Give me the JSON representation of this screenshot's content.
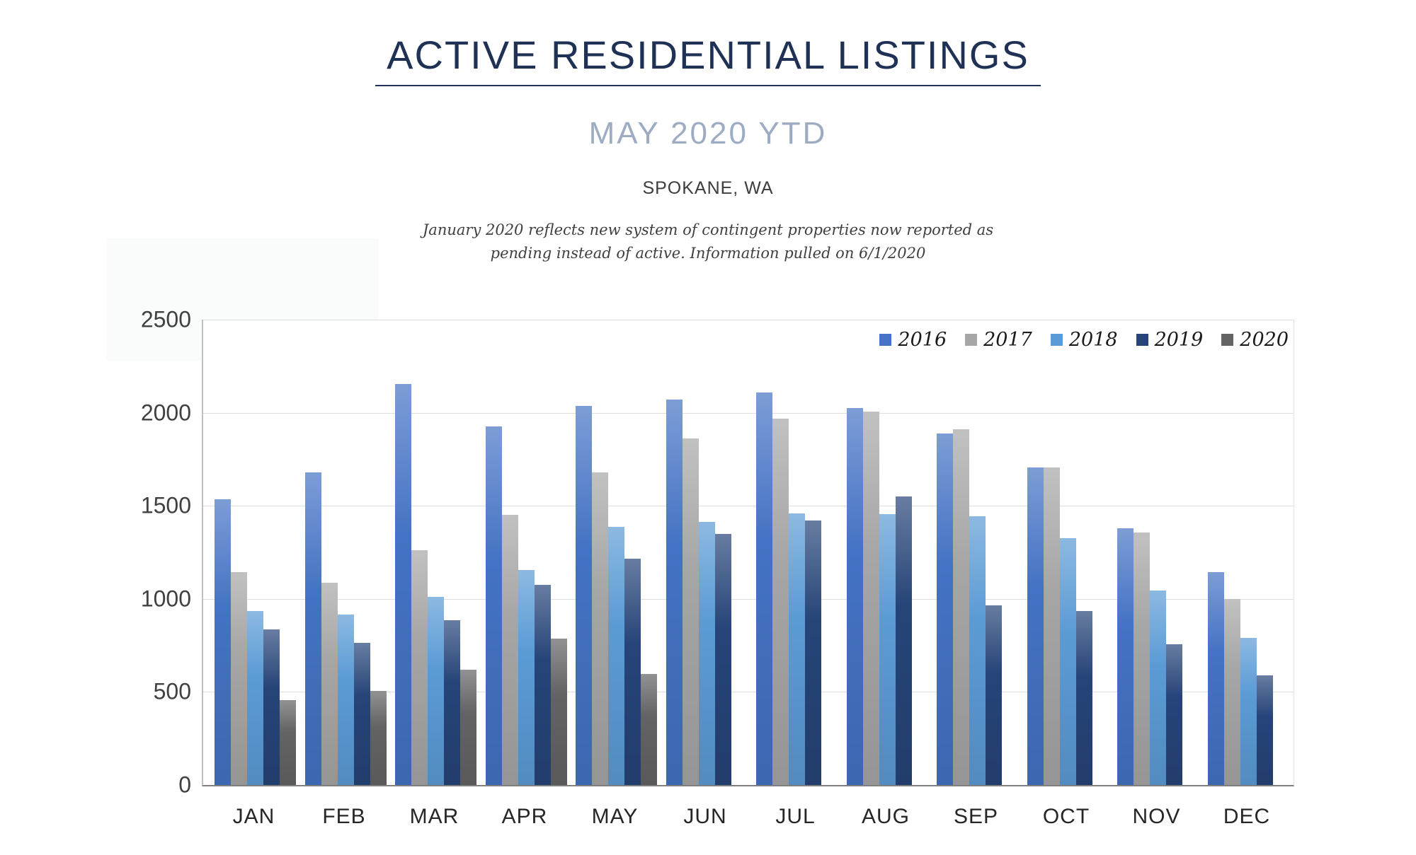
{
  "header": {
    "title": "ACTIVE RESIDENTIAL LISTINGS",
    "subtitle": "MAY 2020 YTD",
    "location": "SPOKANE, WA",
    "note_line1": "January 2020 reflects new system of contingent properties now reported as",
    "note_line2": "pending instead of active.  Information pulled on 6/1/2020"
  },
  "chart_data": {
    "type": "bar",
    "title": "Active Residential Listings, May 2020 YTD, Spokane WA",
    "categories": [
      "JAN",
      "FEB",
      "MAR",
      "APR",
      "MAY",
      "JUN",
      "JUL",
      "AUG",
      "SEP",
      "OCT",
      "NOV",
      "DEC"
    ],
    "series": [
      {
        "name": "2016",
        "color": "#4472C4",
        "values": [
          1535,
          1680,
          2155,
          1925,
          2035,
          2070,
          2110,
          2025,
          1890,
          1705,
          1380,
          1145
        ]
      },
      {
        "name": "2017",
        "color": "#A6A6A6",
        "values": [
          1145,
          1085,
          1260,
          1450,
          1680,
          1860,
          1970,
          2005,
          1910,
          1705,
          1355,
          1000
        ]
      },
      {
        "name": "2018",
        "color": "#5B9BD5",
        "values": [
          935,
          915,
          1010,
          1155,
          1385,
          1415,
          1460,
          1455,
          1445,
          1325,
          1045,
          790
        ]
      },
      {
        "name": "2019",
        "color": "#264478",
        "values": [
          835,
          765,
          885,
          1075,
          1215,
          1350,
          1420,
          1550,
          965,
          935,
          755,
          590
        ]
      },
      {
        "name": "2020",
        "color": "#636363",
        "values": [
          455,
          505,
          620,
          785,
          595,
          null,
          null,
          null,
          null,
          null,
          null,
          null
        ]
      }
    ],
    "ylim": [
      0,
      2500
    ],
    "ytick_interval": 500,
    "yticks": [
      "2500",
      "2000",
      "1500",
      "1000",
      "500",
      "0"
    ],
    "grid": "horizontal",
    "legend_position": "top-right",
    "legend_entries": [
      "2016",
      "2017",
      "2018",
      "2019",
      "2020"
    ]
  }
}
